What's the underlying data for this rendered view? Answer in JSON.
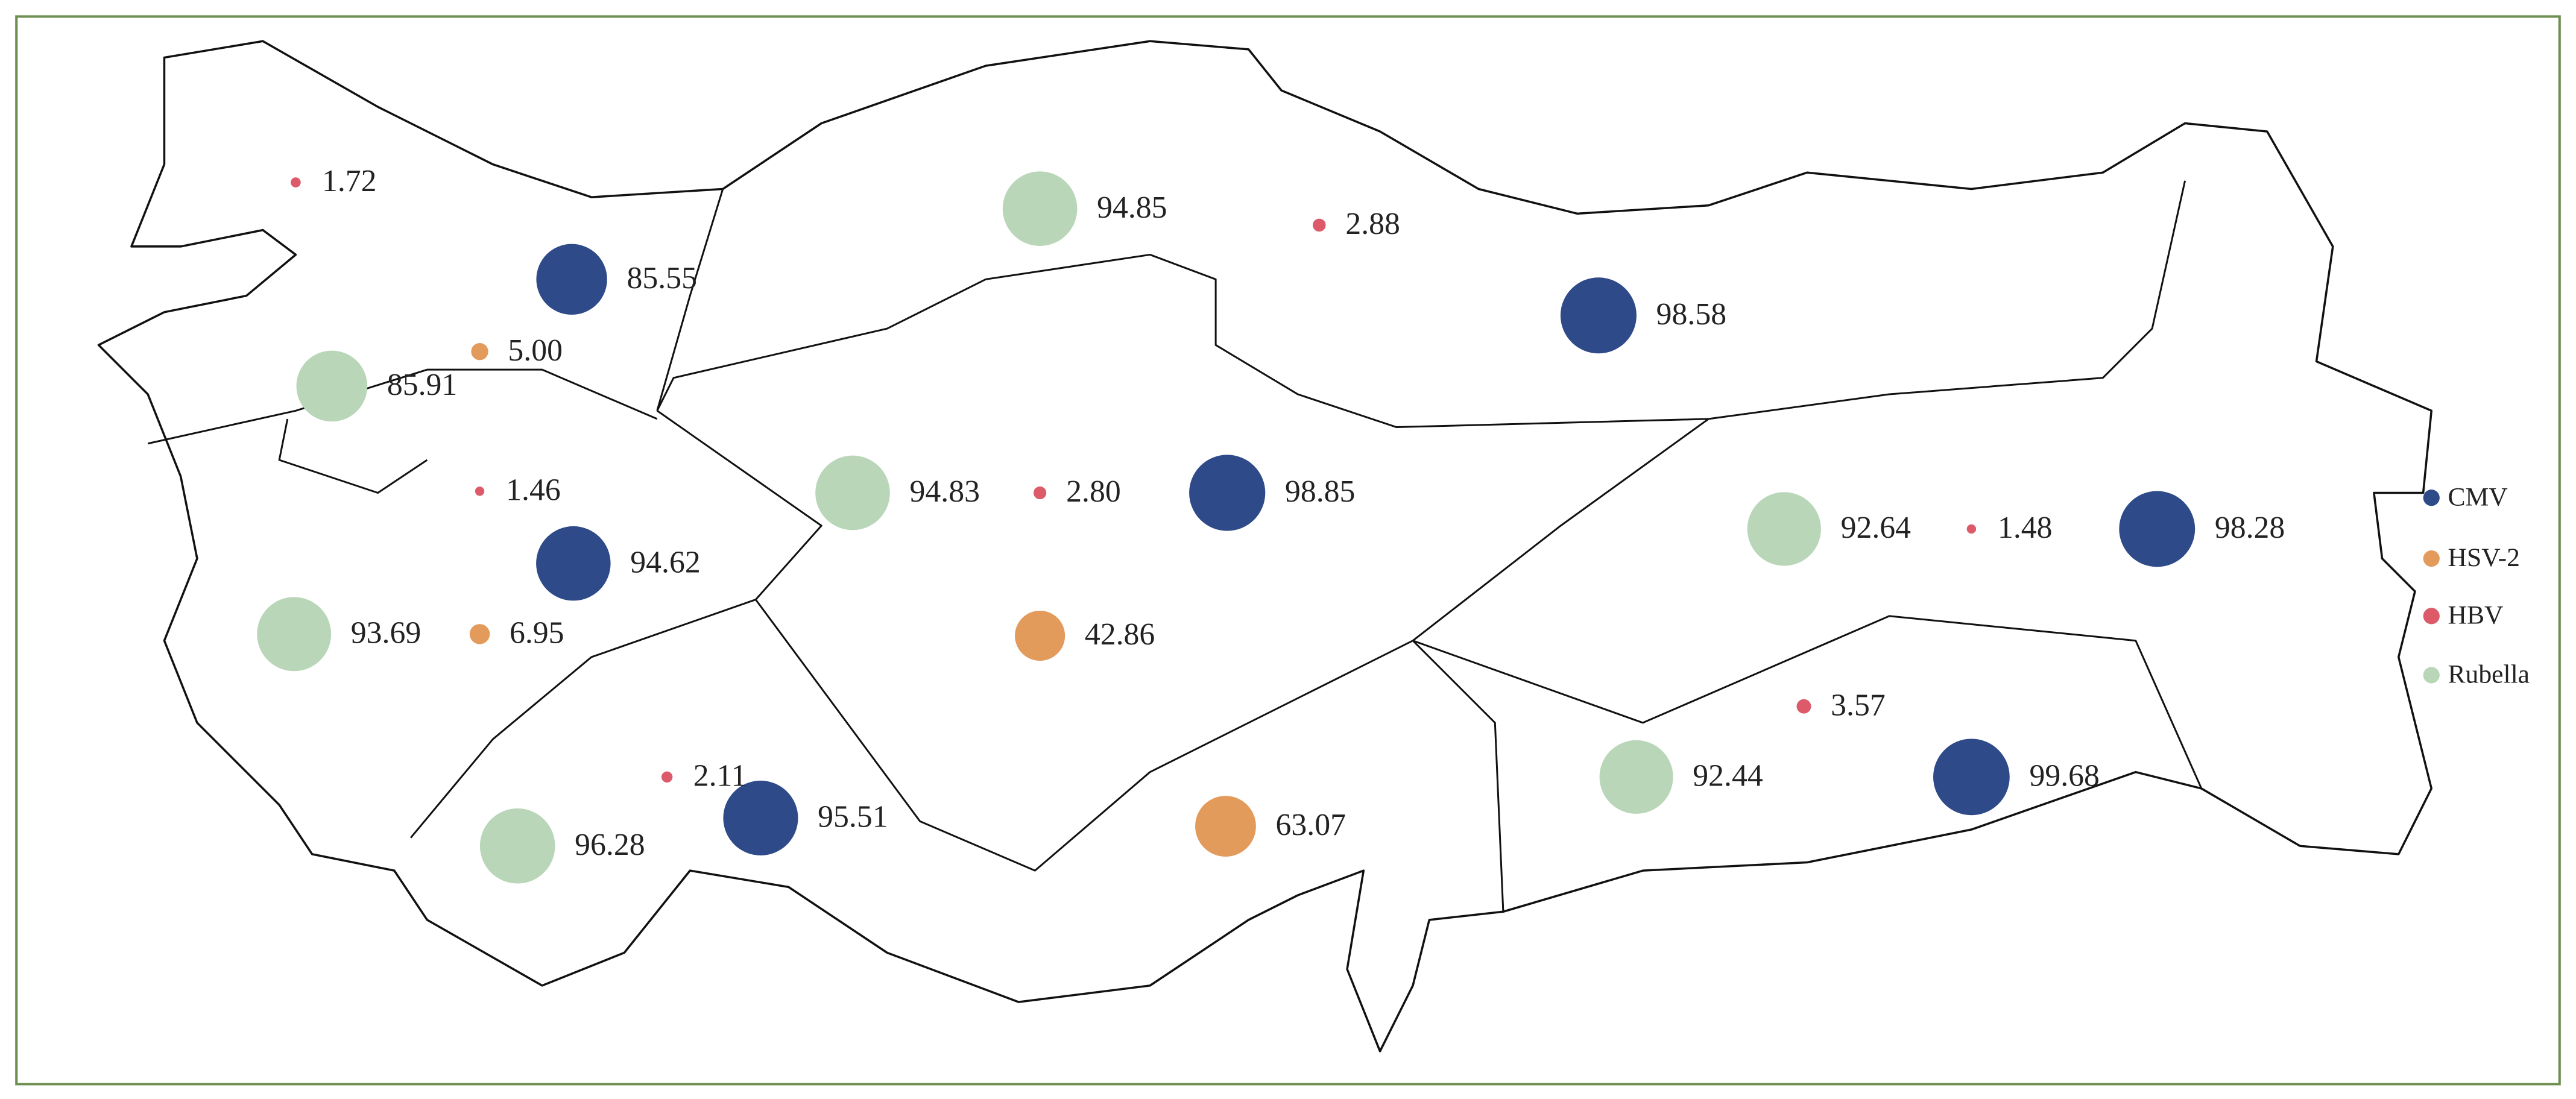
{
  "chart_data": {
    "type": "bubble-map",
    "series": [
      {
        "name": "CMV",
        "color": "#2f4a88",
        "values": [
          85.55,
          98.58,
          98.85,
          94.62,
          98.28,
          99.68,
          95.51
        ]
      },
      {
        "name": "HSV-2",
        "color": "#e39b5c",
        "values": [
          5,
          6.95,
          42.86,
          63.07
        ],
        "value_labels": [
          "5.00",
          "6.95",
          "42.86",
          "63.07"
        ]
      },
      {
        "name": "HBV",
        "color": "#dc5a69",
        "values": [
          1.72,
          2.88,
          1.46,
          2.8,
          1.48,
          3.57,
          2.11
        ],
        "value_labels": [
          "1.72",
          "2.88",
          "1.46",
          "2.80",
          "1.48",
          "3.57",
          "2.11"
        ]
      },
      {
        "name": "Rubella",
        "color": "#b9d6b9",
        "values": [
          94.85,
          85.91,
          94.83,
          93.69,
          92.64,
          92.44,
          96.28
        ]
      }
    ]
  }
}
